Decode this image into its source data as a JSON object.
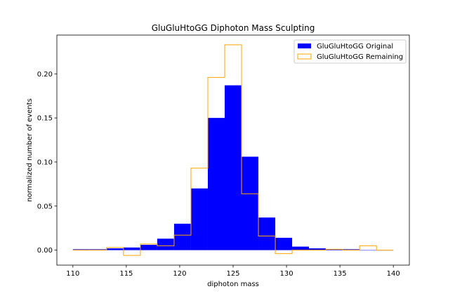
{
  "chart_data": {
    "type": "bar",
    "title": "GluGluHtoGG Diphoton Mass Sculpting",
    "xlabel": "diphoton mass",
    "ylabel": "normalized number of events",
    "xlim": [
      108.5,
      141.5
    ],
    "ylim": [
      -0.017,
      0.244
    ],
    "x_ticks": [
      110,
      115,
      120,
      125,
      130,
      135,
      140
    ],
    "y_ticks": [
      0.0,
      0.05,
      0.1,
      0.15,
      0.2
    ],
    "x_tick_labels": [
      "110",
      "115",
      "120",
      "125",
      "130",
      "135",
      "140"
    ],
    "y_tick_labels": [
      "0.00",
      "0.05",
      "0.10",
      "0.15",
      "0.20"
    ],
    "bin_edges": [
      110,
      111.579,
      113.158,
      114.737,
      116.316,
      117.895,
      119.474,
      121.053,
      122.632,
      124.211,
      125.789,
      127.368,
      128.947,
      130.526,
      132.105,
      133.684,
      135.263,
      136.842,
      138.421,
      140
    ],
    "series": [
      {
        "name": "GluGluHtoGG Original",
        "style": "filled",
        "color": "#0000ff",
        "values": [
          0.001,
          0.001,
          0.002,
          0.003,
          0.006,
          0.013,
          0.03,
          0.07,
          0.15,
          0.187,
          0.106,
          0.037,
          0.014,
          0.004,
          0.002,
          0.001,
          0.001,
          0.0,
          0.0
        ]
      },
      {
        "name": "GluGluHtoGG Remaining",
        "style": "step",
        "color": "#ffa500",
        "values": [
          0.0,
          0.0,
          0.003,
          -0.006,
          0.007,
          0.005,
          0.017,
          0.093,
          0.196,
          0.233,
          0.064,
          0.016,
          -0.004,
          0.0,
          0.0,
          0.001,
          0.0,
          0.005,
          0.0
        ]
      }
    ],
    "grid": false,
    "legend_position": "top-right"
  }
}
